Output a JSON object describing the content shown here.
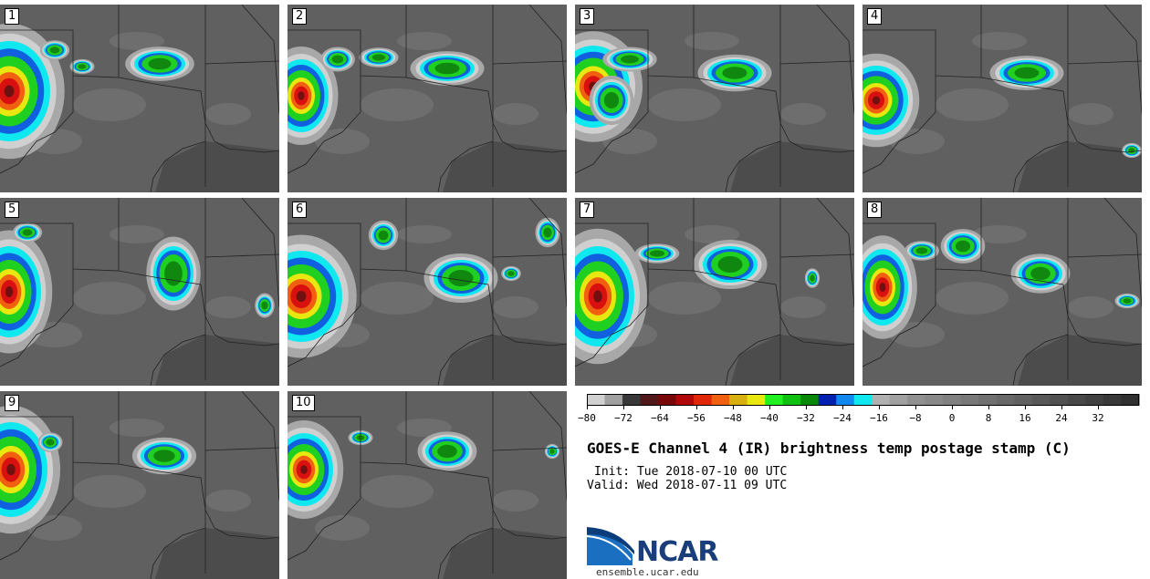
{
  "panels": [
    {
      "label": "1"
    },
    {
      "label": "2"
    },
    {
      "label": "3"
    },
    {
      "label": "4"
    },
    {
      "label": "5"
    },
    {
      "label": "6"
    },
    {
      "label": "7"
    },
    {
      "label": "8"
    },
    {
      "label": "9"
    },
    {
      "label": "10"
    }
  ],
  "colorbar": {
    "colors": [
      "#d0d0d0",
      "#a0a0a0",
      "#383838",
      "#501818",
      "#780808",
      "#b00808",
      "#e02808",
      "#f06010",
      "#d8b010",
      "#e8e810",
      "#20f020",
      "#10c010",
      "#088808",
      "#0020b0",
      "#1088f0",
      "#10e8f0",
      "#b0b0b0",
      "#a0a0a0",
      "#909090",
      "#888888",
      "#808080",
      "#787878",
      "#707070",
      "#686868",
      "#606060",
      "#585858",
      "#505050",
      "#484848",
      "#404040",
      "#383838",
      "#303030"
    ],
    "tick_labels": [
      "−80",
      "−72",
      "−64",
      "−56",
      "−48",
      "−40",
      "−32",
      "−24",
      "−16",
      "−8",
      "0",
      "8",
      "16",
      "24",
      "32"
    ]
  },
  "title": "GOES-E Channel 4 (IR) brightness temp postage stamp (C)",
  "init": "Init: Tue 2018-07-10 00 UTC",
  "valid": "Valid: Wed 2018-07-11 09 UTC",
  "logo": {
    "name": "NCAR",
    "url": "ensemble.ucar.edu"
  }
}
